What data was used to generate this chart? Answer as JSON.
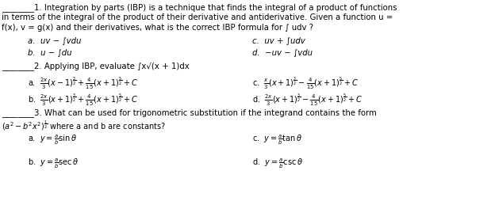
{
  "bg_color": "#ffffff",
  "figsize": [
    6.24,
    2.54
  ],
  "dpi": 100,
  "text_color": "#000000",
  "q1_line1": "________1. Integration by parts (IBP) is a technique that finds the integral of a product of functions",
  "q1_line2": "in terms of the integral of the product of their derivative and antiderivative. Given a function u =",
  "q1_line3": "f(x), v = g(x) and their derivatives, what is the correct IBP formula for ∫ udv ?",
  "q1a": "a.  uv − ∫vdu",
  "q1b": "b.  u − ∫du",
  "q1c": "c.  uv + ∫udv",
  "q1d": "d.  −uv − ∫vdu",
  "q2_line": "________2. Applying IBP, evaluate ∫x√(x + 1)dx",
  "q2a": "a.  $\\frac{2x}{3}(x-1)^{\\frac{3}{2}}+\\frac{4}{15}(x+1)^{\\frac{5}{2}}+C$",
  "q2b": "b.  $\\frac{2x}{3}(x+1)^{\\frac{3}{2}}+\\frac{4}{15}(x+1)^{\\frac{5}{2}}+C$",
  "q2c": "c.  $\\frac{x}{3}(x+1)^{\\frac{3}{2}}-\\frac{4}{15}(x+1)^{\\frac{5}{2}}+C$",
  "q2d": "d.  $\\frac{2x}{3}(x+1)^{\\frac{3}{2}}-\\frac{4}{15}(x+1)^{\\frac{5}{2}}+C$",
  "q3_line1": "________3. What can be used for trigonometric substitution if the integrand contains the form",
  "q3_line2": "$(a^2 - b^2x^2)^{\\frac{1}{2}}$ where a and b are constants?",
  "q3a": "a.  $y = \\frac{a}{b}\\sin\\theta$",
  "q3b": "b.  $y = \\frac{a}{b}\\sec\\theta$",
  "q3c": "c.  $y = \\frac{a}{b}\\tan\\theta$",
  "q3d": "d.  $y = \\frac{a}{b}\\csc\\theta$",
  "fs_main": 7.3,
  "fs_answer": 7.3,
  "fs_math": 7.0
}
